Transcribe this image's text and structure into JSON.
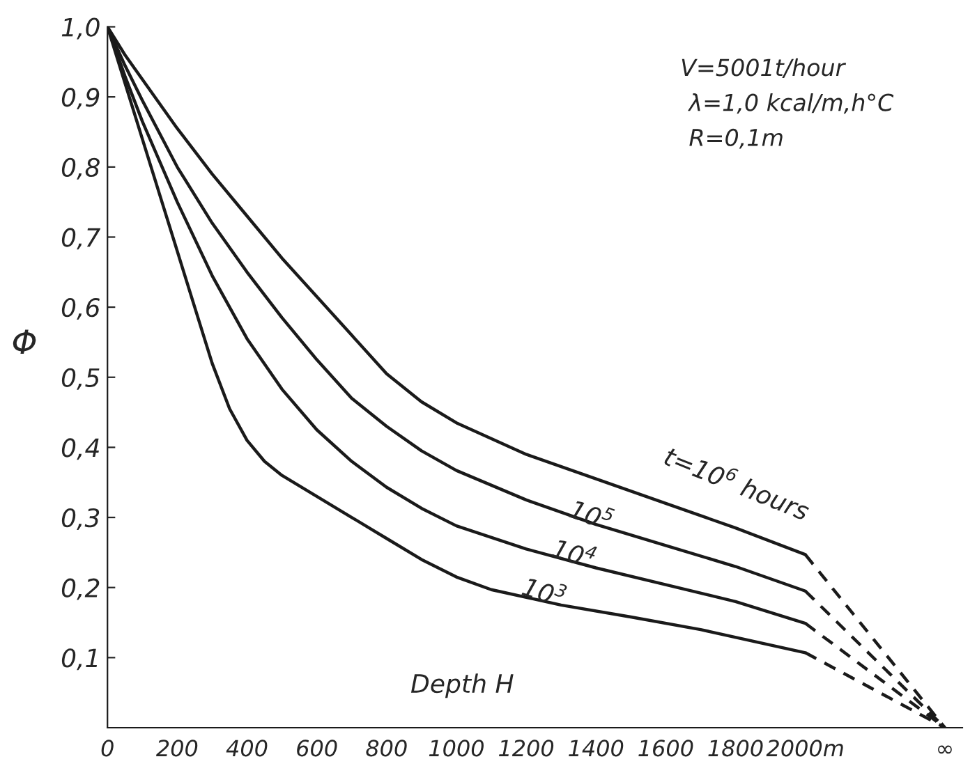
{
  "chart_data": {
    "type": "line",
    "xlabel": "Depth H",
    "ylabel": "Φ",
    "xlim": [
      0,
      2450
    ],
    "ylim": [
      0,
      1.0
    ],
    "xticks": [
      0,
      200,
      400,
      600,
      800,
      1000,
      1200,
      1400,
      1600,
      1800,
      {
        "value": 2000,
        "label": "2000m"
      },
      {
        "value": 2400,
        "label": "∞"
      }
    ],
    "yticks": [
      {
        "value": 0.1,
        "label": "0,1"
      },
      {
        "value": 0.2,
        "label": "0,2"
      },
      {
        "value": 0.3,
        "label": "0,3"
      },
      {
        "value": 0.4,
        "label": "0,4"
      },
      {
        "value": 0.5,
        "label": "0,5"
      },
      {
        "value": 0.6,
        "label": "0,6"
      },
      {
        "value": 0.7,
        "label": "0,7"
      },
      {
        "value": 0.8,
        "label": "0,8"
      },
      {
        "value": 0.9,
        "label": "0,9"
      },
      {
        "value": 1.0,
        "label": "1,0"
      }
    ],
    "grid": false,
    "legend": false,
    "marker": "none",
    "series": [
      {
        "color": "#1a1a1a",
        "line_style": "solid",
        "x": [
          0,
          50,
          100,
          200,
          300,
          400,
          500,
          600,
          700,
          800,
          900,
          1000,
          1200,
          1400,
          1600,
          1800,
          2000
        ],
        "values": [
          1.0,
          0.96,
          0.925,
          0.855,
          0.79,
          0.73,
          0.67,
          0.615,
          0.56,
          0.505,
          0.465,
          0.435,
          0.39,
          0.355,
          0.32,
          0.285,
          0.247
        ]
      },
      {
        "color": "#1a1a1a",
        "line_style": "solid",
        "x": [
          0,
          50,
          100,
          200,
          300,
          400,
          500,
          600,
          700,
          800,
          900,
          1000,
          1200,
          1400,
          1600,
          1800,
          2000
        ],
        "values": [
          1.0,
          0.945,
          0.895,
          0.8,
          0.72,
          0.65,
          0.585,
          0.525,
          0.47,
          0.43,
          0.395,
          0.367,
          0.325,
          0.29,
          0.26,
          0.23,
          0.195
        ]
      },
      {
        "color": "#1a1a1a",
        "line_style": "solid",
        "x": [
          0,
          50,
          100,
          200,
          300,
          400,
          500,
          600,
          700,
          800,
          900,
          1000,
          1200,
          1400,
          1600,
          1800,
          2000
        ],
        "values": [
          1.0,
          0.93,
          0.865,
          0.75,
          0.645,
          0.555,
          0.483,
          0.425,
          0.38,
          0.343,
          0.313,
          0.288,
          0.255,
          0.228,
          0.204,
          0.18,
          0.149
        ]
      },
      {
        "color": "#1a1a1a",
        "line_style": "solid",
        "x": [
          0,
          50,
          100,
          150,
          200,
          250,
          300,
          350,
          400,
          450,
          500,
          600,
          700,
          800,
          900,
          1000,
          1100,
          1300,
          1500,
          1700,
          2000
        ],
        "values": [
          1.0,
          0.92,
          0.84,
          0.76,
          0.68,
          0.6,
          0.52,
          0.455,
          0.41,
          0.38,
          0.36,
          0.33,
          0.3,
          0.27,
          0.24,
          0.215,
          0.197,
          0.175,
          0.158,
          0.14,
          0.107
        ]
      },
      {
        "color": "#1a1a1a",
        "line_style": "dashed",
        "x": [
          2000,
          2400
        ],
        "values": [
          0.247,
          0.0
        ]
      },
      {
        "color": "#1a1a1a",
        "line_style": "dashed",
        "x": [
          2000,
          2400
        ],
        "values": [
          0.195,
          0.0
        ]
      },
      {
        "color": "#1a1a1a",
        "line_style": "dashed",
        "x": [
          2000,
          2400
        ],
        "values": [
          0.149,
          0.0
        ]
      },
      {
        "color": "#1a1a1a",
        "line_style": "dashed",
        "x": [
          2000,
          2400
        ],
        "values": [
          0.107,
          0.0
        ]
      }
    ],
    "annotations": [
      "t=10$^{6}$ hours",
      "10$^{5}$",
      "10$^{4}$",
      "10$^{3}$",
      "V=5001t/hour",
      "λ=1,0 kcal/m,h°C",
      "R=0,1m"
    ]
  }
}
